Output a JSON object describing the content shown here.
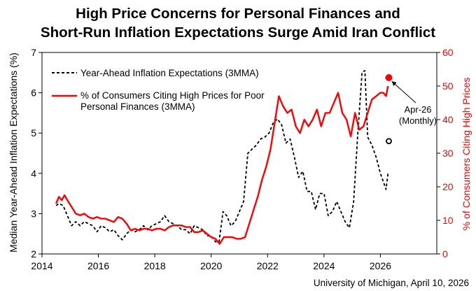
{
  "chart_data": {
    "type": "line",
    "title_line1": "High Price Concerns for Personal Finances and",
    "title_line2": "Short-Run Inflation Expectations Surge Amid Iran Conflict",
    "ylabel_left": "Median Year-Ahead Inflation Expectations (%)",
    "ylabel_right": "% of Consumers Citing High Prices",
    "source": "University of Michigan, April 10, 2026",
    "annotation_line1": "Apr-26",
    "annotation_line2": "(Monthly)",
    "xlim": [
      2014,
      2028
    ],
    "x_ticks": [
      "2014",
      "2016",
      "2018",
      "2020",
      "2022",
      "2024",
      "2026"
    ],
    "ylim_left": [
      2,
      7
    ],
    "y_left_ticks": [
      "2",
      "3",
      "4",
      "5",
      "6",
      "7"
    ],
    "ylim_right": [
      0,
      60
    ],
    "y_right_ticks": [
      "0",
      "10",
      "20",
      "30",
      "40",
      "50",
      "60"
    ],
    "left_color": "#000000",
    "right_color": "#ff0000",
    "grid": false,
    "legend_position": "top-left",
    "series": [
      {
        "name": "Year-Ahead Inflation Expectations (3MMA)",
        "axis": "left",
        "style": "dashed",
        "color": "#000000",
        "x": [
          2014.5,
          2014.6,
          2014.75,
          2014.9,
          2015.05,
          2015.2,
          2015.35,
          2015.5,
          2015.65,
          2015.8,
          2015.95,
          2016.1,
          2016.25,
          2016.4,
          2016.55,
          2016.7,
          2016.85,
          2017.0,
          2017.15,
          2017.3,
          2017.45,
          2017.6,
          2017.75,
          2017.9,
          2018.05,
          2018.2,
          2018.35,
          2018.5,
          2018.65,
          2018.8,
          2018.95,
          2019.1,
          2019.25,
          2019.4,
          2019.55,
          2019.7,
          2019.85,
          2020.0,
          2020.15,
          2020.28,
          2020.42,
          2020.55,
          2020.7,
          2020.85,
          2021.0,
          2021.15,
          2021.3,
          2021.45,
          2021.6,
          2021.75,
          2021.9,
          2022.05,
          2022.2,
          2022.35,
          2022.5,
          2022.65,
          2022.8,
          2022.95,
          2023.1,
          2023.25,
          2023.4,
          2023.55,
          2023.7,
          2023.85,
          2024.0,
          2024.15,
          2024.3,
          2024.45,
          2024.6,
          2024.75,
          2024.9,
          2025.05,
          2025.2,
          2025.35,
          2025.45,
          2025.55,
          2025.7,
          2025.85,
          2026.0,
          2026.1,
          2026.2,
          2026.27
        ],
        "y": [
          3.2,
          3.25,
          3.2,
          2.95,
          2.7,
          2.8,
          2.7,
          2.8,
          2.75,
          2.7,
          2.55,
          2.7,
          2.65,
          2.55,
          2.6,
          2.45,
          2.35,
          2.5,
          2.6,
          2.55,
          2.6,
          2.7,
          2.6,
          2.7,
          2.75,
          2.8,
          2.95,
          2.8,
          2.75,
          2.7,
          2.6,
          2.6,
          2.5,
          2.7,
          2.65,
          2.6,
          2.45,
          2.45,
          2.3,
          2.3,
          3.05,
          2.95,
          2.7,
          2.8,
          3.05,
          3.3,
          4.5,
          4.6,
          4.7,
          4.85,
          4.9,
          5.0,
          5.25,
          5.35,
          5.2,
          4.75,
          4.85,
          4.4,
          3.9,
          4.05,
          3.55,
          3.55,
          3.1,
          3.5,
          3.5,
          2.95,
          3.05,
          3.3,
          3.05,
          2.8,
          2.65,
          3.3,
          5.0,
          6.5,
          6.55,
          4.9,
          4.7,
          4.4,
          4.0,
          3.8,
          3.6,
          4.0
        ]
      },
      {
        "name": "% of Consumers Citing High Prices for Poor Personal Finances (3MMA)",
        "axis": "right",
        "style": "solid",
        "color": "#ff0000",
        "x": [
          2014.5,
          2014.6,
          2014.7,
          2014.8,
          2014.9,
          2015.05,
          2015.2,
          2015.35,
          2015.5,
          2015.65,
          2015.8,
          2015.95,
          2016.1,
          2016.25,
          2016.4,
          2016.55,
          2016.7,
          2016.85,
          2017.0,
          2017.15,
          2017.3,
          2017.45,
          2017.6,
          2017.75,
          2017.9,
          2018.05,
          2018.2,
          2018.35,
          2018.5,
          2018.65,
          2018.8,
          2018.95,
          2019.1,
          2019.25,
          2019.4,
          2019.55,
          2019.7,
          2019.85,
          2020.0,
          2020.15,
          2020.3,
          2020.45,
          2020.6,
          2020.75,
          2020.9,
          2021.05,
          2021.2,
          2021.35,
          2021.5,
          2021.65,
          2021.8,
          2021.95,
          2022.1,
          2022.25,
          2022.4,
          2022.55,
          2022.7,
          2022.85,
          2023.0,
          2023.15,
          2023.3,
          2023.45,
          2023.6,
          2023.75,
          2023.9,
          2024.05,
          2024.2,
          2024.35,
          2024.5,
          2024.65,
          2024.8,
          2024.95,
          2025.1,
          2025.25,
          2025.4,
          2025.55,
          2025.7,
          2025.85,
          2026.0,
          2026.1,
          2026.2,
          2026.27
        ],
        "y": [
          15,
          17,
          16,
          17.5,
          16,
          14,
          12,
          11.5,
          12,
          11,
          10.5,
          11,
          10.5,
          10.5,
          10,
          9.5,
          11,
          10.5,
          9,
          7,
          7.5,
          7,
          7.5,
          7.5,
          7,
          7.5,
          7.5,
          7,
          8,
          8.5,
          8.5,
          8.5,
          8,
          8,
          6.5,
          6.5,
          7,
          6,
          5,
          4.5,
          3,
          5,
          5,
          5,
          4.5,
          4.5,
          5,
          9,
          13,
          17,
          22,
          26,
          31,
          39,
          47,
          44,
          42,
          43,
          38,
          36,
          40,
          38,
          40,
          43,
          38,
          42,
          42,
          45,
          48,
          42,
          40,
          35,
          42,
          37,
          38,
          42,
          46,
          47,
          48,
          48,
          47,
          50
        ]
      }
    ],
    "markers": [
      {
        "name": "Apr-26 High Prices",
        "axis": "right",
        "x": 2026.3,
        "y": 52.5,
        "style": "filled",
        "color": "#ff0000"
      },
      {
        "name": "Apr-26 Expectations",
        "axis": "left",
        "x": 2026.3,
        "y": 4.8,
        "style": "hollow",
        "color": "#000000"
      }
    ]
  }
}
